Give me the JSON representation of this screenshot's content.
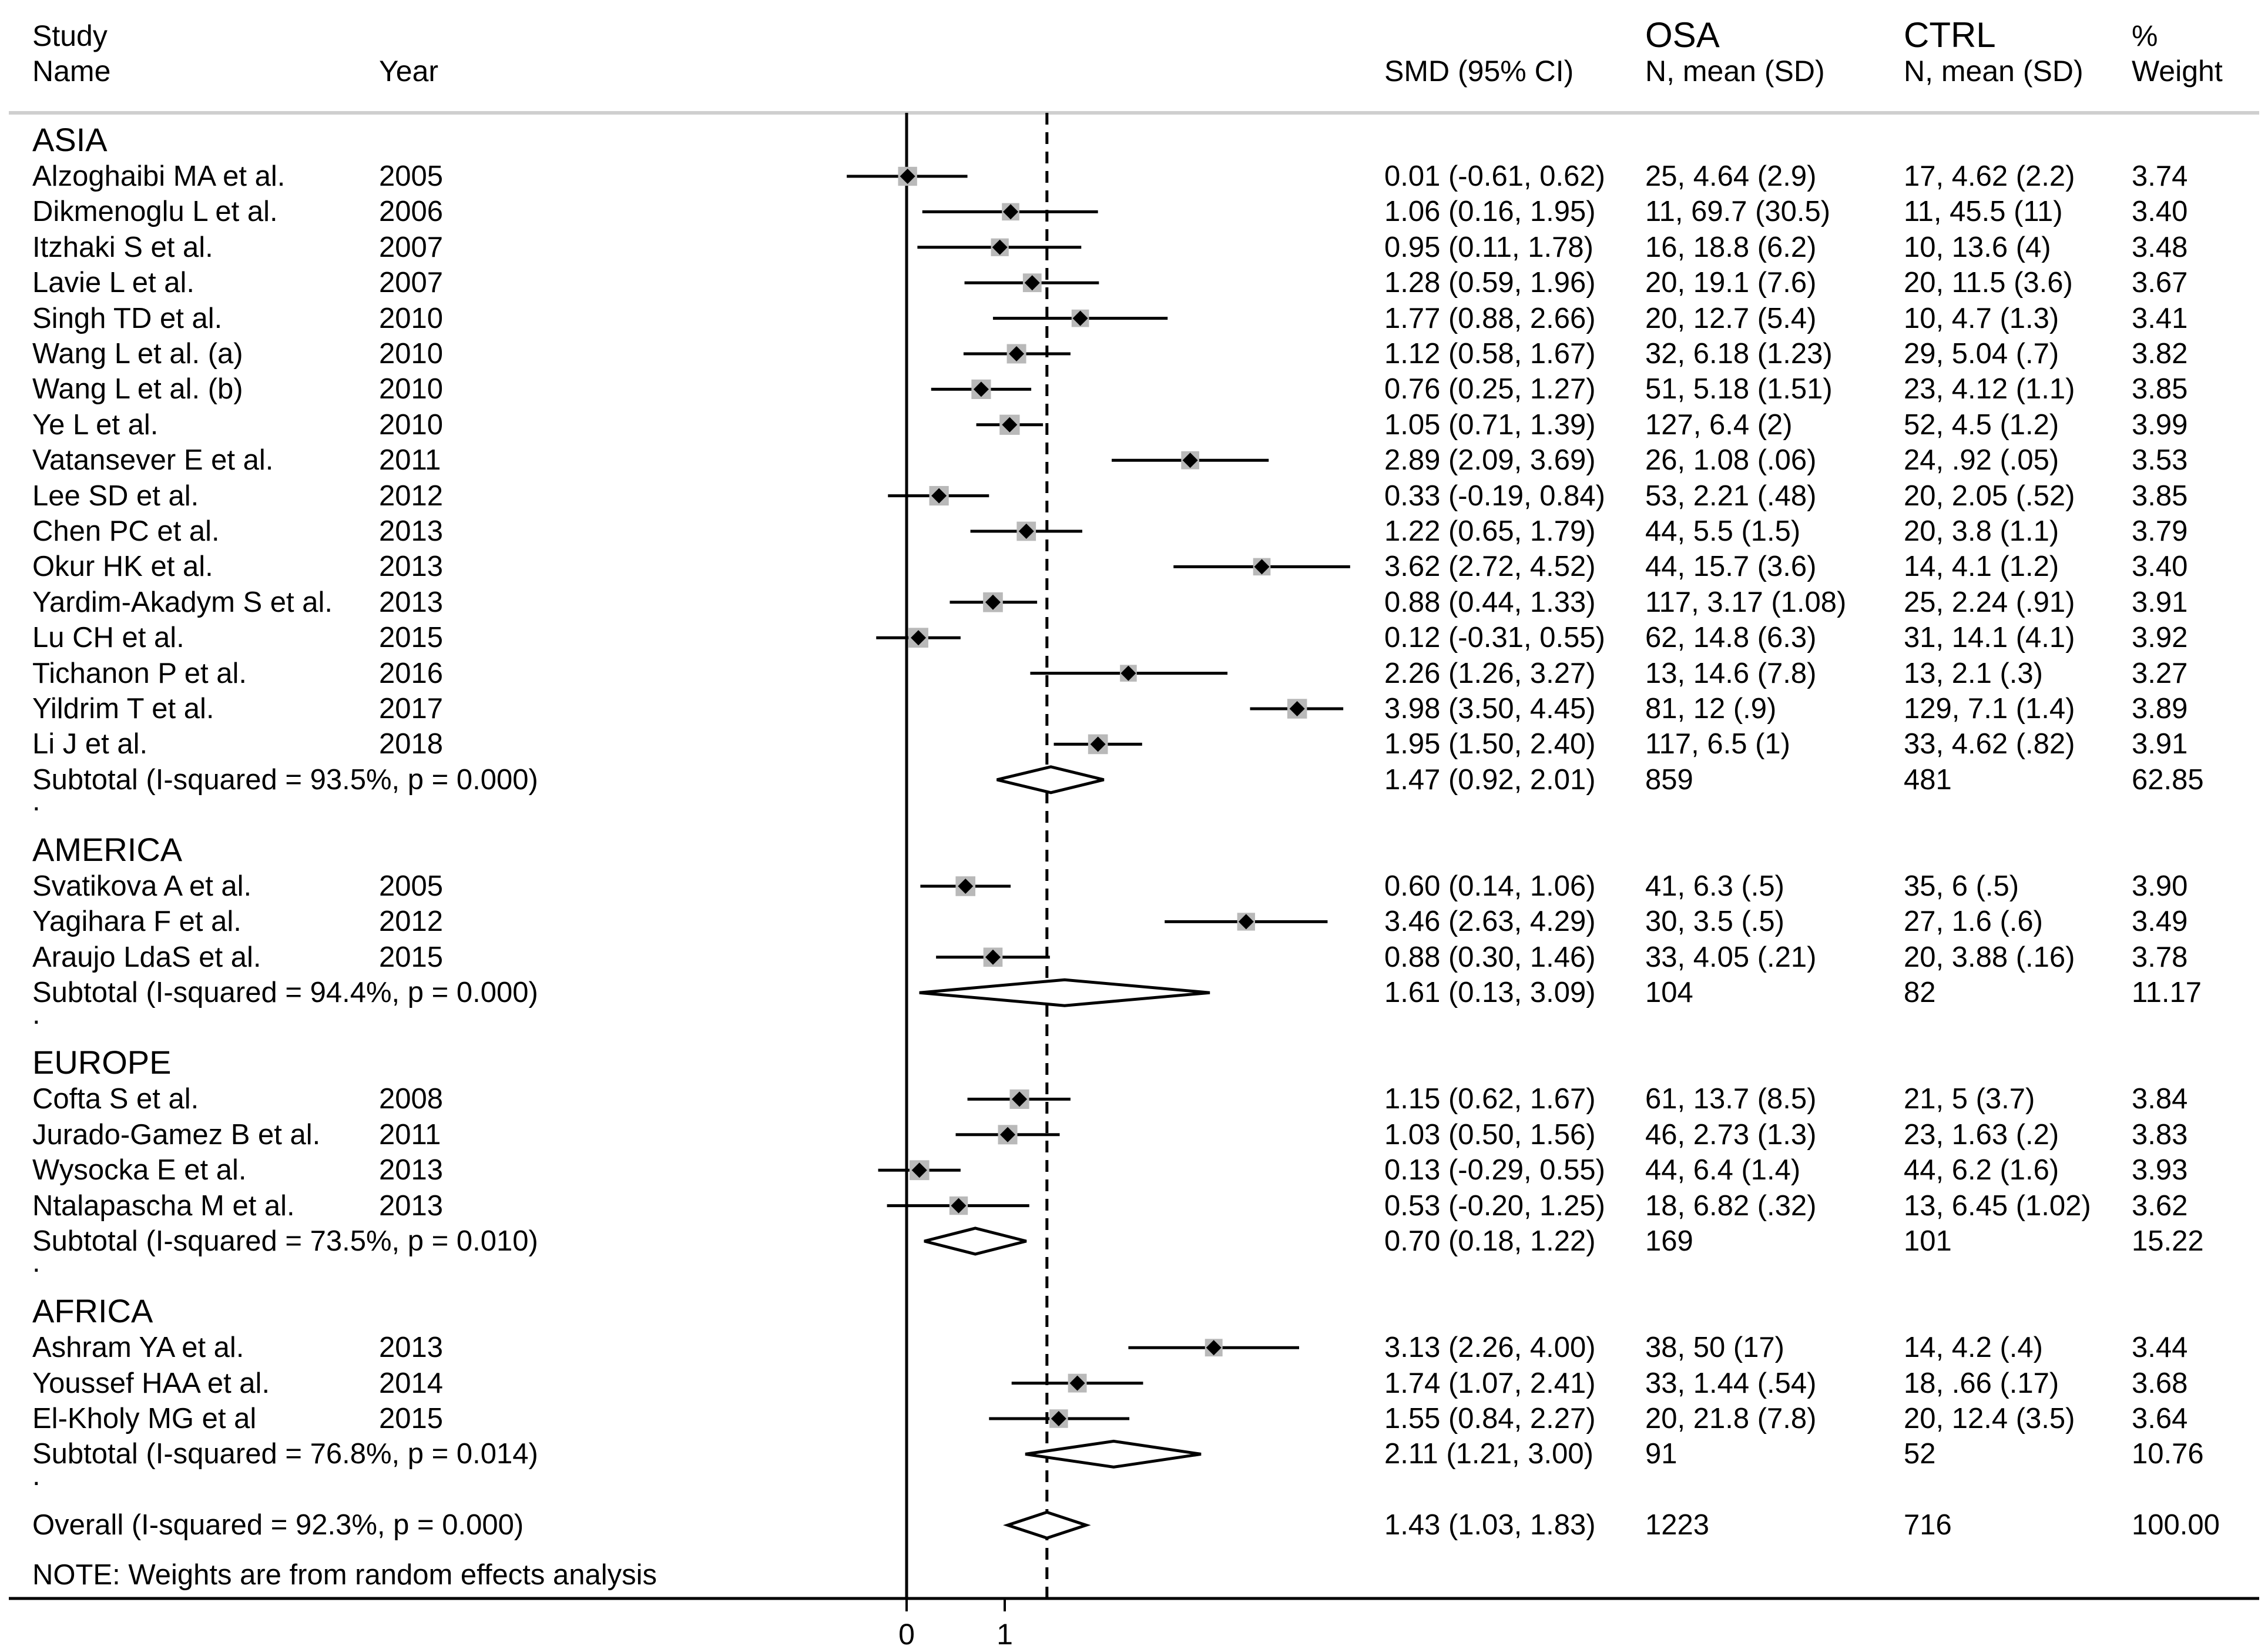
{
  "header": {
    "study_l1": "Study",
    "study_l2": "Name",
    "year": "Year",
    "smd": "SMD (95% CI)",
    "osa_l1": "OSA",
    "osa_l2": "N, mean (SD)",
    "ctrl_l1": "CTRL",
    "ctrl_l2": "N, mean (SD)",
    "weight_l1": "%",
    "weight_l2": "Weight"
  },
  "groups": [
    {
      "name": "ASIA",
      "studies": [
        {
          "name": "Alzoghaibi MA et al.",
          "year": "2005",
          "ci": "0.01 (-0.61, 0.62)",
          "osa": "25, 4.64 (2.9)",
          "ctrl": "17, 4.62 (2.2)",
          "weight": "3.74"
        },
        {
          "name": "Dikmenoglu L et al.",
          "year": "2006",
          "ci": "1.06 (0.16, 1.95)",
          "osa": "11, 69.7 (30.5)",
          "ctrl": "11, 45.5 (11)",
          "weight": "3.40"
        },
        {
          "name": "Itzhaki S et al.",
          "year": "2007",
          "ci": "0.95 (0.11, 1.78)",
          "osa": "16, 18.8 (6.2)",
          "ctrl": "10, 13.6 (4)",
          "weight": "3.48"
        },
        {
          "name": "Lavie L et al.",
          "year": "2007",
          "ci": "1.28 (0.59, 1.96)",
          "osa": "20, 19.1 (7.6)",
          "ctrl": "20, 11.5 (3.6)",
          "weight": "3.67"
        },
        {
          "name": "Singh TD et al.",
          "year": "2010",
          "ci": "1.77 (0.88, 2.66)",
          "osa": "20, 12.7 (5.4)",
          "ctrl": "10, 4.7 (1.3)",
          "weight": "3.41"
        },
        {
          "name": "Wang L et al. (a)",
          "year": "2010",
          "ci": "1.12 (0.58, 1.67)",
          "osa": "32, 6.18 (1.23)",
          "ctrl": "29, 5.04 (.7)",
          "weight": "3.82"
        },
        {
          "name": "Wang L et al. (b)",
          "year": "2010",
          "ci": "0.76 (0.25, 1.27)",
          "osa": "51, 5.18 (1.51)",
          "ctrl": "23, 4.12 (1.1)",
          "weight": "3.85"
        },
        {
          "name": "Ye L et al.",
          "year": "2010",
          "ci": "1.05 (0.71, 1.39)",
          "osa": "127, 6.4 (2)",
          "ctrl": "52, 4.5 (1.2)",
          "weight": "3.99"
        },
        {
          "name": "Vatansever E et al.",
          "year": "2011",
          "ci": "2.89 (2.09, 3.69)",
          "osa": "26, 1.08 (.06)",
          "ctrl": "24, .92 (.05)",
          "weight": "3.53"
        },
        {
          "name": "Lee  SD et al.",
          "year": "2012",
          "ci": "0.33 (-0.19, 0.84)",
          "osa": "53, 2.21 (.48)",
          "ctrl": "20, 2.05 (.52)",
          "weight": "3.85"
        },
        {
          "name": "Chen PC et al.",
          "year": "2013",
          "ci": "1.22 (0.65, 1.79)",
          "osa": "44, 5.5 (1.5)",
          "ctrl": "20, 3.8 (1.1)",
          "weight": "3.79"
        },
        {
          "name": "Okur HK et al.",
          "year": "2013",
          "ci": "3.62 (2.72, 4.52)",
          "osa": "44, 15.7 (3.6)",
          "ctrl": "14, 4.1 (1.2)",
          "weight": "3.40"
        },
        {
          "name": "Yardim-Akadym S et al.",
          "year": "2013",
          "ci": "0.88 (0.44, 1.33)",
          "osa": "117, 3.17 (1.08)",
          "ctrl": "25, 2.24 (.91)",
          "weight": "3.91"
        },
        {
          "name": "Lu CH et al.",
          "year": "2015",
          "ci": "0.12 (-0.31, 0.55)",
          "osa": "62, 14.8 (6.3)",
          "ctrl": "31, 14.1 (4.1)",
          "weight": "3.92"
        },
        {
          "name": "Tichanon P et al.",
          "year": "2016",
          "ci": "2.26 (1.26, 3.27)",
          "osa": "13, 14.6 (7.8)",
          "ctrl": "13, 2.1 (.3)",
          "weight": "3.27"
        },
        {
          "name": "Yildrim T et al.",
          "year": "2017",
          "ci": "3.98 (3.50, 4.45)",
          "osa": "81, 12 (.9)",
          "ctrl": "129, 7.1 (1.4)",
          "weight": "3.89"
        },
        {
          "name": "Li J et al.",
          "year": "2018",
          "ci": "1.95 (1.50, 2.40)",
          "osa": "117, 6.5 (1)",
          "ctrl": "33, 4.62 (.82)",
          "weight": "3.91"
        }
      ],
      "subtotal": {
        "label": "Subtotal  (I-squared = 93.5%, p = 0.000)",
        "ci": "1.47 (0.92, 2.01)",
        "osa": "859",
        "ctrl": "481",
        "weight": "62.85"
      }
    },
    {
      "name": "AMERICA",
      "studies": [
        {
          "name": "Svatikova A et al.",
          "year": "2005",
          "ci": "0.60 (0.14, 1.06)",
          "osa": "41, 6.3 (.5)",
          "ctrl": "35, 6 (.5)",
          "weight": "3.90"
        },
        {
          "name": "Yagihara F et al.",
          "year": "2012",
          "ci": "3.46 (2.63, 4.29)",
          "osa": "30, 3.5 (.5)",
          "ctrl": "27, 1.6 (.6)",
          "weight": "3.49"
        },
        {
          "name": "Araujo LdaS et al.",
          "year": "2015",
          "ci": "0.88 (0.30, 1.46)",
          "osa": "33, 4.05 (.21)",
          "ctrl": "20, 3.88 (.16)",
          "weight": "3.78"
        }
      ],
      "subtotal": {
        "label": "Subtotal  (I-squared = 94.4%, p = 0.000)",
        "ci": "1.61 (0.13, 3.09)",
        "osa": "104",
        "ctrl": "82",
        "weight": "11.17"
      }
    },
    {
      "name": "EUROPE",
      "studies": [
        {
          "name": "Cofta S et al.",
          "year": "2008",
          "ci": "1.15 (0.62, 1.67)",
          "osa": "61, 13.7 (8.5)",
          "ctrl": "21, 5 (3.7)",
          "weight": "3.84"
        },
        {
          "name": "Jurado-Gamez B et al.",
          "year": "2011",
          "ci": "1.03 (0.50, 1.56)",
          "osa": "46, 2.73 (1.3)",
          "ctrl": "23, 1.63 (.2)",
          "weight": "3.83"
        },
        {
          "name": "Wysocka E et al.",
          "year": "2013",
          "ci": "0.13 (-0.29, 0.55)",
          "osa": "44, 6.4 (1.4)",
          "ctrl": "44, 6.2 (1.6)",
          "weight": "3.93"
        },
        {
          "name": "Ntalapascha M et al.",
          "year": "2013",
          "ci": "0.53 (-0.20, 1.25)",
          "osa": "18, 6.82 (.32)",
          "ctrl": "13, 6.45 (1.02)",
          "weight": "3.62"
        }
      ],
      "subtotal": {
        "label": "Subtotal  (I-squared = 73.5%, p = 0.010)",
        "ci": "0.70 (0.18, 1.22)",
        "osa": "169",
        "ctrl": "101",
        "weight": "15.22"
      }
    },
    {
      "name": "AFRICA",
      "studies": [
        {
          "name": "Ashram YA et al.",
          "year": "2013",
          "ci": "3.13 (2.26, 4.00)",
          "osa": "38, 50 (17)",
          "ctrl": "14, 4.2 (.4)",
          "weight": "3.44"
        },
        {
          "name": "Youssef HAA et al.",
          "year": "2014",
          "ci": "1.74 (1.07, 2.41)",
          "osa": "33, 1.44 (.54)",
          "ctrl": "18, .66 (.17)",
          "weight": "3.68"
        },
        {
          "name": "El-Kholy MG et al",
          "year": "2015",
          "ci": "1.55 (0.84, 2.27)",
          "osa": "20, 21.8 (7.8)",
          "ctrl": "20, 12.4 (3.5)",
          "weight": "3.64"
        }
      ],
      "subtotal": {
        "label": "Subtotal  (I-squared = 76.8%, p = 0.014)",
        "ci": "2.11 (1.21, 3.00)",
        "osa": "91",
        "ctrl": "52",
        "weight": "10.76"
      }
    }
  ],
  "overall": {
    "label": "Overall  (I-squared = 92.3%, p = 0.000)",
    "ci": "1.43 (1.03, 1.83)",
    "osa": "1223",
    "ctrl": "716",
    "weight": "100.00"
  },
  "note": "NOTE: Weights are from random effects analysis",
  "separator": ".",
  "chart_data": {
    "type": "forest",
    "xlabel": "",
    "x_ticks": [
      "0",
      "1"
    ],
    "null_line": 0,
    "overall_line": 1.43,
    "rows": [
      {
        "group": "ASIA",
        "label": "Alzoghaibi MA et al.",
        "est": 0.01,
        "lo": -0.61,
        "hi": 0.62
      },
      {
        "group": "ASIA",
        "label": "Dikmenoglu L et al.",
        "est": 1.06,
        "lo": 0.16,
        "hi": 1.95
      },
      {
        "group": "ASIA",
        "label": "Itzhaki S et al.",
        "est": 0.95,
        "lo": 0.11,
        "hi": 1.78
      },
      {
        "group": "ASIA",
        "label": "Lavie L et al.",
        "est": 1.28,
        "lo": 0.59,
        "hi": 1.96
      },
      {
        "group": "ASIA",
        "label": "Singh TD et al.",
        "est": 1.77,
        "lo": 0.88,
        "hi": 2.66
      },
      {
        "group": "ASIA",
        "label": "Wang L et al. (a)",
        "est": 1.12,
        "lo": 0.58,
        "hi": 1.67
      },
      {
        "group": "ASIA",
        "label": "Wang L et al. (b)",
        "est": 0.76,
        "lo": 0.25,
        "hi": 1.27
      },
      {
        "group": "ASIA",
        "label": "Ye L et al.",
        "est": 1.05,
        "lo": 0.71,
        "hi": 1.39
      },
      {
        "group": "ASIA",
        "label": "Vatansever E et al.",
        "est": 2.89,
        "lo": 2.09,
        "hi": 3.69
      },
      {
        "group": "ASIA",
        "label": "Lee  SD et al.",
        "est": 0.33,
        "lo": -0.19,
        "hi": 0.84
      },
      {
        "group": "ASIA",
        "label": "Chen PC et al.",
        "est": 1.22,
        "lo": 0.65,
        "hi": 1.79
      },
      {
        "group": "ASIA",
        "label": "Okur HK et al.",
        "est": 3.62,
        "lo": 2.72,
        "hi": 4.52
      },
      {
        "group": "ASIA",
        "label": "Yardim-Akadym S et al.",
        "est": 0.88,
        "lo": 0.44,
        "hi": 1.33
      },
      {
        "group": "ASIA",
        "label": "Lu CH et al.",
        "est": 0.12,
        "lo": -0.31,
        "hi": 0.55
      },
      {
        "group": "ASIA",
        "label": "Tichanon P et al.",
        "est": 2.26,
        "lo": 1.26,
        "hi": 3.27
      },
      {
        "group": "ASIA",
        "label": "Yildrim T et al.",
        "est": 3.98,
        "lo": 3.5,
        "hi": 4.45
      },
      {
        "group": "ASIA",
        "label": "Li J et al.",
        "est": 1.95,
        "lo": 1.5,
        "hi": 2.4
      },
      {
        "group": "ASIA",
        "label": "Subtotal",
        "est": 1.47,
        "lo": 0.92,
        "hi": 2.01,
        "summary": true
      },
      {
        "group": "AMERICA",
        "label": "Svatikova A et al.",
        "est": 0.6,
        "lo": 0.14,
        "hi": 1.06
      },
      {
        "group": "AMERICA",
        "label": "Yagihara F et al.",
        "est": 3.46,
        "lo": 2.63,
        "hi": 4.29
      },
      {
        "group": "AMERICA",
        "label": "Araujo LdaS et al.",
        "est": 0.88,
        "lo": 0.3,
        "hi": 1.46
      },
      {
        "group": "AMERICA",
        "label": "Subtotal",
        "est": 1.61,
        "lo": 0.13,
        "hi": 3.09,
        "summary": true
      },
      {
        "group": "EUROPE",
        "label": "Cofta S et al.",
        "est": 1.15,
        "lo": 0.62,
        "hi": 1.67
      },
      {
        "group": "EUROPE",
        "label": "Jurado-Gamez B et al.",
        "est": 1.03,
        "lo": 0.5,
        "hi": 1.56
      },
      {
        "group": "EUROPE",
        "label": "Wysocka E et al.",
        "est": 0.13,
        "lo": -0.29,
        "hi": 0.55
      },
      {
        "group": "EUROPE",
        "label": "Ntalapascha M et al.",
        "est": 0.53,
        "lo": -0.2,
        "hi": 1.25
      },
      {
        "group": "EUROPE",
        "label": "Subtotal",
        "est": 0.7,
        "lo": 0.18,
        "hi": 1.22,
        "summary": true
      },
      {
        "group": "AFRICA",
        "label": "Ashram YA et al.",
        "est": 3.13,
        "lo": 2.26,
        "hi": 4.0
      },
      {
        "group": "AFRICA",
        "label": "Youssef HAA et al.",
        "est": 1.74,
        "lo": 1.07,
        "hi": 2.41
      },
      {
        "group": "AFRICA",
        "label": "El-Kholy MG et al",
        "est": 1.55,
        "lo": 0.84,
        "hi": 2.27
      },
      {
        "group": "AFRICA",
        "label": "Subtotal",
        "est": 2.11,
        "lo": 1.21,
        "hi": 3.0,
        "summary": true
      },
      {
        "group": "",
        "label": "Overall",
        "est": 1.43,
        "lo": 1.03,
        "hi": 1.83,
        "summary": true
      }
    ]
  }
}
